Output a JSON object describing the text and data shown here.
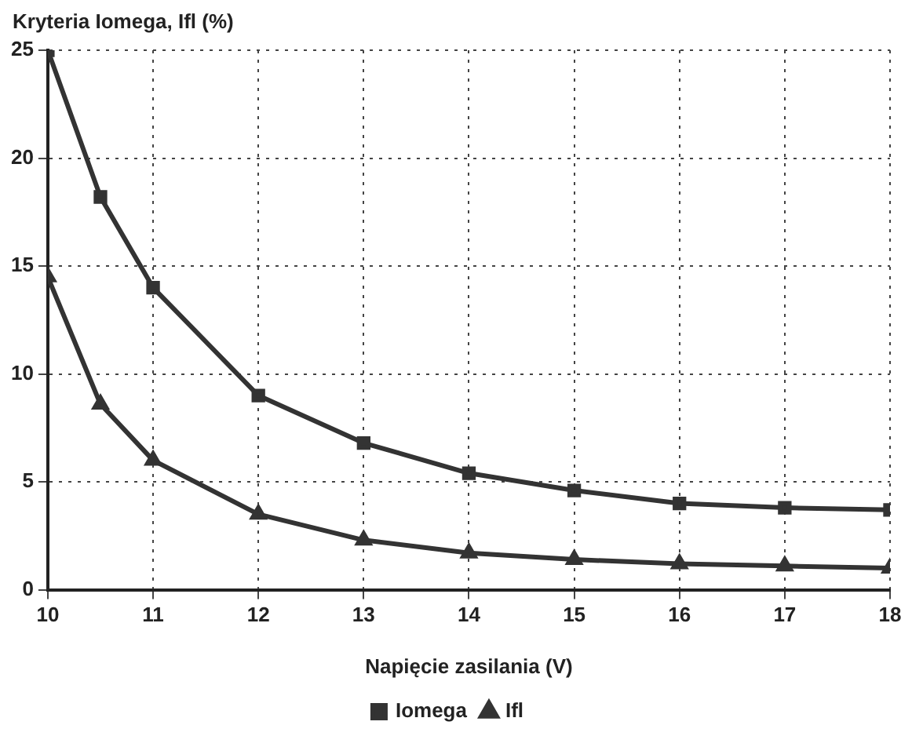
{
  "chart_data": {
    "type": "line",
    "ylabel": "Kryteria Iomega, Ifl (%)",
    "xlabel": "Napięcie zasilania (V)",
    "x": [
      10,
      10.5,
      11,
      12,
      13,
      14,
      15,
      16,
      17,
      18
    ],
    "series": [
      {
        "name": "Iomega",
        "color": "#333333",
        "marker": "square",
        "values": [
          25,
          18.2,
          14,
          9,
          6.8,
          5.4,
          4.6,
          4,
          3.8,
          3.7
        ]
      },
      {
        "name": "Ifl",
        "color": "#333333",
        "marker": "triangle",
        "values": [
          14.5,
          8.6,
          6,
          3.5,
          2.3,
          1.7,
          1.4,
          1.2,
          1.1,
          1
        ]
      }
    ],
    "xlim": [
      10,
      18
    ],
    "xticks": [
      10,
      11,
      12,
      13,
      14,
      15,
      16,
      17,
      18
    ],
    "ylim": [
      0,
      25
    ],
    "yticks": [
      0,
      5,
      10,
      15,
      20,
      25
    ],
    "grid": true,
    "legend": "bottom",
    "line_style": "solid"
  }
}
